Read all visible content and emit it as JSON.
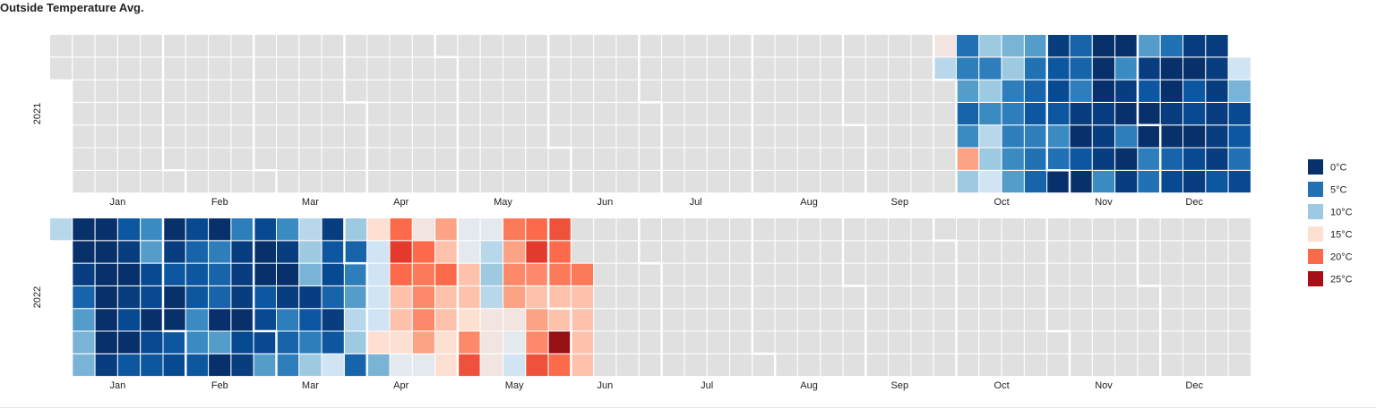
{
  "chart_title": "Outside Temperature Avg.",
  "chart_data": {
    "type": "heatmap",
    "title": "Outside Temperature Avg.",
    "unit": "°C",
    "missing_color": "#e0e0e0",
    "month_labels": [
      "Jan",
      "Feb",
      "Mar",
      "Apr",
      "May",
      "Jun",
      "Jul",
      "Aug",
      "Sep",
      "Oct",
      "Nov",
      "Dec"
    ],
    "legend": {
      "placement": "right",
      "entries": [
        {
          "label": "0°C",
          "color": "#08306b"
        },
        {
          "label": "5°C",
          "color": "#2171b5"
        },
        {
          "label": "10°C",
          "color": "#9ecae1"
        },
        {
          "label": "15°C",
          "color": "#fee0d2"
        },
        {
          "label": "20°C",
          "color": "#fb6a4a"
        },
        {
          "label": "25°C",
          "color": "#a50f15"
        }
      ]
    },
    "years": [
      {
        "year": "2021",
        "start_date": "2021-10-01",
        "daily_avg_c": [
          11,
          14,
          10,
          17,
          7,
          4,
          8,
          6,
          5,
          12,
          10,
          11,
          7,
          10,
          6,
          10,
          8,
          7,
          6,
          6,
          6,
          10,
          9,
          4,
          5,
          6,
          3,
          4,
          5,
          8,
          0,
          5,
          7,
          3,
          2,
          3,
          1,
          0,
          3,
          0,
          1,
          6,
          4,
          4,
          7,
          1,
          1,
          1,
          0,
          0,
          0,
          1,
          0,
          6,
          0,
          1,
          7,
          0,
          5,
          6,
          0,
          0,
          3,
          1,
          8,
          2,
          4,
          0,
          1,
          0,
          0,
          5,
          1,
          2,
          0,
          2,
          3,
          0,
          1,
          3,
          1,
          1,
          1,
          1,
          1,
          1,
          2,
          5,
          3,
          2,
          9,
          12
        ]
      },
      {
        "year": "2022",
        "start_date": "2022-01-01",
        "daily_avg_c": [
          11,
          9,
          9,
          8,
          4,
          1,
          0,
          0,
          1,
          0,
          0,
          0,
          0,
          0,
          0,
          3,
          0,
          2,
          1,
          0,
          1,
          3,
          3,
          2,
          0,
          2,
          2,
          8,
          7,
          2,
          3,
          0,
          0,
          3,
          1,
          0,
          3,
          7,
          7,
          3,
          3,
          4,
          2,
          0,
          8,
          0,
          4,
          4,
          6,
          0,
          1,
          2,
          0,
          1,
          1,
          1,
          6,
          8,
          2,
          2,
          3,
          0,
          0,
          2,
          6,
          4,
          6,
          1,
          0,
          1,
          7,
          10,
          6,
          3,
          1,
          9,
          10,
          11,
          12,
          3,
          1,
          4,
          2,
          3,
          1,
          4,
          10,
          11,
          8,
          6,
          4,
          10,
          9,
          15,
          12,
          12,
          12,
          12,
          15,
          13,
          15,
          16,
          16,
          20,
          22,
          20,
          13,
          17,
          18,
          18,
          19,
          20,
          14,
          15,
          15,
          16,
          16,
          20,
          16,
          17,
          21,
          18,
          15,
          16,
          16,
          13,
          13,
          14,
          14,
          14,
          11,
          10,
          11,
          13,
          12,
          13,
          14,
          17,
          18,
          17,
          19,
          21,
          18,
          17,
          16,
          18,
          22,
          20,
          20,
          24,
          16,
          16,
          19,
          20,
          21,
          16,
          16,
          16,
          16,
          19
        ]
      }
    ]
  }
}
